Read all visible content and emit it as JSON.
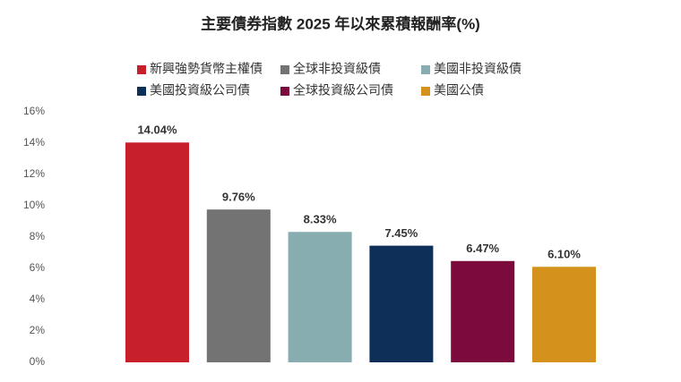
{
  "chart_data": {
    "type": "bar",
    "title": "主要債券指數 2025 年以來累積報酬率(%)",
    "categories": [
      null
    ],
    "series": [
      {
        "name": "新興強勢貨幣主權債",
        "color": "#c8202a",
        "values": [
          14.04
        ],
        "value_labels": [
          "14.04%"
        ]
      },
      {
        "name": "全球非投資級債",
        "color": "#737373",
        "values": [
          9.76
        ],
        "value_labels": [
          "9.76%"
        ]
      },
      {
        "name": "美國非投資級債",
        "color": "#87adb0",
        "values": [
          8.33
        ],
        "value_labels": [
          "8.33%"
        ]
      },
      {
        "name": "美國投資級公司債",
        "color": "#0e2f57",
        "values": [
          7.45
        ],
        "value_labels": [
          "7.45%"
        ]
      },
      {
        "name": "全球投資級公司債",
        "color": "#7d0a3c",
        "values": [
          6.47
        ],
        "value_labels": [
          "6.47%"
        ]
      },
      {
        "name": "美國公債",
        "color": "#d4921d",
        "values": [
          6.1
        ],
        "value_labels": [
          "6.10%"
        ]
      }
    ],
    "ylim": [
      0,
      16
    ],
    "yticks": [
      {
        "value": 0,
        "label": "0%"
      },
      {
        "value": 2,
        "label": "2%"
      },
      {
        "value": 4,
        "label": "4%"
      },
      {
        "value": 6,
        "label": "6%"
      },
      {
        "value": 8,
        "label": "8%"
      },
      {
        "value": 10,
        "label": "10%"
      },
      {
        "value": 12,
        "label": "12%"
      },
      {
        "value": 14,
        "label": "14%"
      },
      {
        "value": 16,
        "label": "16%"
      }
    ],
    "grid": false
  }
}
